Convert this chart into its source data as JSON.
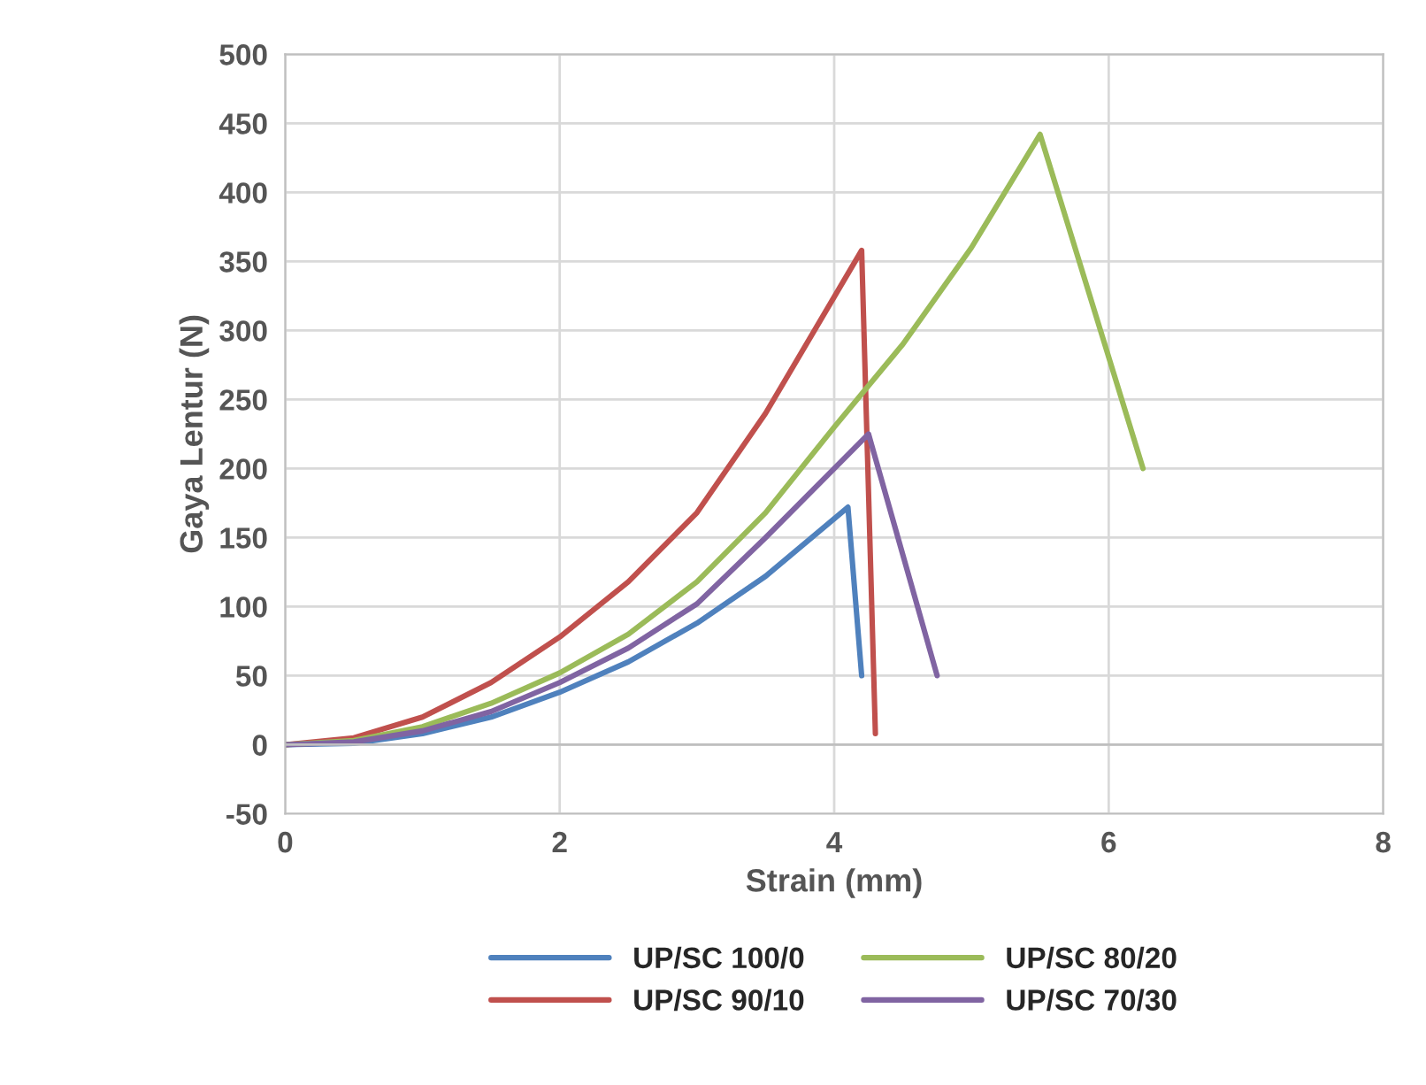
{
  "chart_data": {
    "type": "line",
    "xlabel": "Strain (mm)",
    "ylabel": "Gaya Lentur (N)",
    "xlim": [
      0,
      8
    ],
    "xticks": [
      0,
      2,
      4,
      6,
      8
    ],
    "ylim": [
      -50,
      500
    ],
    "yticks": [
      -50,
      0,
      50,
      100,
      150,
      200,
      250,
      300,
      350,
      400,
      450,
      500
    ],
    "grid": true,
    "legend": "bottom",
    "marker": "none",
    "line_style": "solid",
    "series": [
      {
        "name": "UP/SC 100/0",
        "color": "#4f81bd",
        "x": [
          0,
          0.5,
          1,
          1.5,
          2,
          2.5,
          3,
          3.5,
          4.1,
          4.2
        ],
        "values": [
          0,
          1,
          8,
          20,
          38,
          60,
          88,
          122,
          172,
          50
        ]
      },
      {
        "name": "UP/SC 90/10",
        "color": "#c0504d",
        "x": [
          0,
          0.5,
          1,
          1.5,
          2,
          2.5,
          3,
          3.5,
          4.2,
          4.3
        ],
        "values": [
          0,
          5,
          20,
          45,
          78,
          118,
          168,
          240,
          358,
          8
        ]
      },
      {
        "name": "UP/SC 80/20",
        "color": "#9bbb59",
        "x": [
          0,
          0.5,
          1,
          1.5,
          2,
          2.5,
          3,
          3.5,
          4,
          4.5,
          5,
          5.5,
          6.25
        ],
        "values": [
          0,
          3,
          13,
          30,
          52,
          80,
          118,
          168,
          230,
          290,
          360,
          442,
          200
        ]
      },
      {
        "name": "UP/SC 70/30",
        "color": "#8064a2",
        "x": [
          0,
          0.5,
          1,
          1.5,
          2,
          2.5,
          3,
          3.5,
          4.25,
          4.75
        ],
        "values": [
          0,
          2,
          10,
          24,
          45,
          70,
          102,
          150,
          225,
          50
        ]
      }
    ]
  }
}
